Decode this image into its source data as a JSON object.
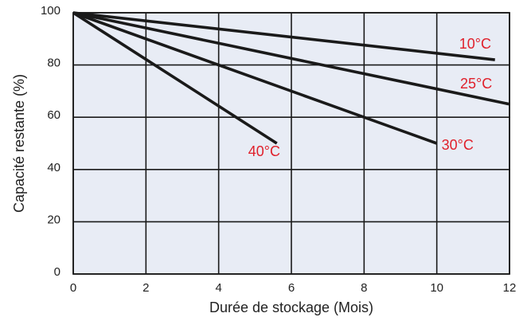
{
  "chart_data": {
    "type": "line",
    "title": "",
    "xlabel": "Durée de stockage (Mois)",
    "ylabel": "Capacité restante (%)",
    "xlim": [
      0,
      12
    ],
    "ylim": [
      0,
      100
    ],
    "x_ticks": [
      0,
      2,
      4,
      6,
      8,
      10,
      12
    ],
    "y_ticks": [
      0,
      20,
      40,
      60,
      80,
      100
    ],
    "grid": true,
    "colors": {
      "plot_background": "#e8ecf5",
      "grid": "#1a1a1a",
      "line": "#1a1a1a",
      "series_label": "#e0202b"
    },
    "series": [
      {
        "name": "10°C",
        "x": [
          0,
          11.6
        ],
        "y": [
          100,
          82
        ]
      },
      {
        "name": "25°C",
        "x": [
          0,
          12
        ],
        "y": [
          100,
          65
        ]
      },
      {
        "name": "30°C",
        "x": [
          0,
          10
        ],
        "y": [
          100,
          50
        ]
      },
      {
        "name": "40°C",
        "x": [
          0,
          5.6
        ],
        "y": [
          100,
          50
        ]
      }
    ]
  }
}
